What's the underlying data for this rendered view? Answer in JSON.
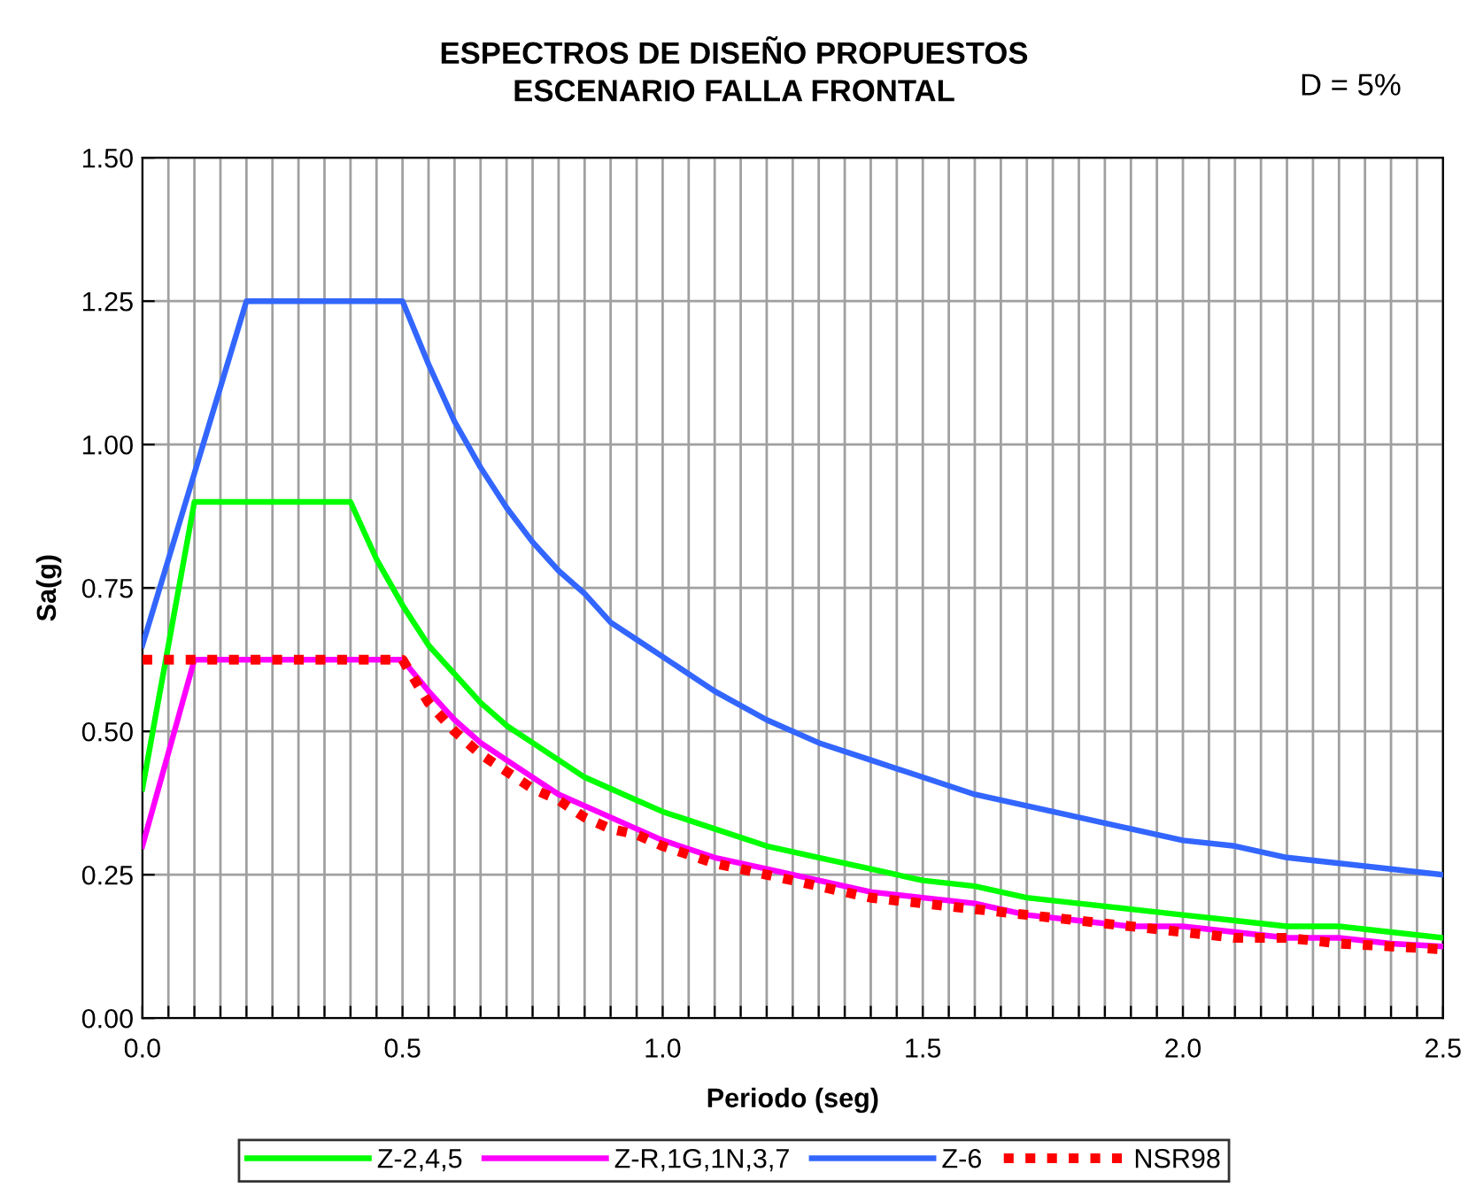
{
  "chart_data": {
    "type": "line",
    "title": "ESPECTROS DE DISEÑO PROPUESTOS\nESCENARIO FALLA FRONTAL",
    "annotations": [
      "D = 5%"
    ],
    "xlabel": "Periodo (seg)",
    "ylabel": "Sa(g)",
    "xlim": [
      0,
      2.5
    ],
    "ylim": [
      0,
      1.5
    ],
    "xticks": [
      {
        "value": 0,
        "label": "0.0"
      },
      {
        "value": 0.05,
        "label": null
      },
      {
        "value": 0.1,
        "label": null
      },
      {
        "value": 0.15,
        "label": null
      },
      {
        "value": 0.2,
        "label": null
      },
      {
        "value": 0.25,
        "label": null
      },
      {
        "value": 0.3,
        "label": null
      },
      {
        "value": 0.35,
        "label": null
      },
      {
        "value": 0.4,
        "label": null
      },
      {
        "value": 0.45,
        "label": null
      },
      {
        "value": 0.5,
        "label": "0.5"
      },
      {
        "value": 0.55,
        "label": null
      },
      {
        "value": 0.6,
        "label": null
      },
      {
        "value": 0.65,
        "label": null
      },
      {
        "value": 0.7,
        "label": null
      },
      {
        "value": 0.75,
        "label": null
      },
      {
        "value": 0.8,
        "label": null
      },
      {
        "value": 0.85,
        "label": null
      },
      {
        "value": 0.9,
        "label": null
      },
      {
        "value": 0.95,
        "label": null
      },
      {
        "value": 1.0,
        "label": "1.0"
      },
      {
        "value": 1.05,
        "label": null
      },
      {
        "value": 1.1,
        "label": null
      },
      {
        "value": 1.15,
        "label": null
      },
      {
        "value": 1.2,
        "label": null
      },
      {
        "value": 1.25,
        "label": null
      },
      {
        "value": 1.3,
        "label": null
      },
      {
        "value": 1.35,
        "label": null
      },
      {
        "value": 1.4,
        "label": null
      },
      {
        "value": 1.45,
        "label": null
      },
      {
        "value": 1.5,
        "label": "1.5"
      },
      {
        "value": 1.55,
        "label": null
      },
      {
        "value": 1.6,
        "label": null
      },
      {
        "value": 1.65,
        "label": null
      },
      {
        "value": 1.7,
        "label": null
      },
      {
        "value": 1.75,
        "label": null
      },
      {
        "value": 1.8,
        "label": null
      },
      {
        "value": 1.85,
        "label": null
      },
      {
        "value": 1.9,
        "label": null
      },
      {
        "value": 1.95,
        "label": null
      },
      {
        "value": 2.0,
        "label": "2.0"
      },
      {
        "value": 2.05,
        "label": null
      },
      {
        "value": 2.1,
        "label": null
      },
      {
        "value": 2.15,
        "label": null
      },
      {
        "value": 2.2,
        "label": null
      },
      {
        "value": 2.25,
        "label": null
      },
      {
        "value": 2.3,
        "label": null
      },
      {
        "value": 2.35,
        "label": null
      },
      {
        "value": 2.4,
        "label": null
      },
      {
        "value": 2.45,
        "label": null
      },
      {
        "value": 2.5,
        "label": "2.5"
      }
    ],
    "yticks": [
      {
        "value": 0,
        "label": "0.00"
      },
      {
        "value": 0.25,
        "label": "0.25"
      },
      {
        "value": 0.5,
        "label": "0.50"
      },
      {
        "value": 0.75,
        "label": "0.75"
      },
      {
        "value": 1.0,
        "label": "1.00"
      },
      {
        "value": 1.25,
        "label": "1.25"
      },
      {
        "value": 1.5,
        "label": "1.50"
      }
    ],
    "grid": true,
    "legend": "bottom",
    "marker": "none",
    "series": [
      {
        "name": "Z-2,4,5",
        "color": "#00ff00",
        "x": [
          0,
          0.1,
          0.4,
          0.45,
          0.5,
          0.55,
          0.6,
          0.65,
          0.7,
          0.75,
          0.8,
          0.85,
          0.9,
          0.95,
          1.0,
          1.1,
          1.2,
          1.3,
          1.4,
          1.5,
          1.6,
          1.7,
          1.8,
          1.9,
          2.0,
          2.1,
          2.2,
          2.3,
          2.4,
          2.5
        ],
        "values": [
          0.4,
          0.9,
          0.9,
          0.8,
          0.72,
          0.65,
          0.6,
          0.55,
          0.51,
          0.48,
          0.45,
          0.42,
          0.4,
          0.38,
          0.36,
          0.33,
          0.3,
          0.28,
          0.26,
          0.24,
          0.23,
          0.21,
          0.2,
          0.19,
          0.18,
          0.17,
          0.16,
          0.16,
          0.15,
          0.14
        ]
      },
      {
        "name": "Z-R,1G,1N,3,7",
        "color": "#ff00ff",
        "x": [
          0,
          0.1,
          0.5,
          0.55,
          0.6,
          0.65,
          0.7,
          0.75,
          0.8,
          0.85,
          0.9,
          0.95,
          1.0,
          1.1,
          1.2,
          1.3,
          1.4,
          1.5,
          1.6,
          1.7,
          1.8,
          1.9,
          2.0,
          2.1,
          2.2,
          2.3,
          2.4,
          2.5
        ],
        "values": [
          0.3,
          0.625,
          0.625,
          0.57,
          0.52,
          0.48,
          0.45,
          0.42,
          0.39,
          0.37,
          0.35,
          0.33,
          0.31,
          0.28,
          0.26,
          0.24,
          0.22,
          0.21,
          0.2,
          0.18,
          0.17,
          0.16,
          0.16,
          0.15,
          0.14,
          0.14,
          0.13,
          0.125
        ]
      },
      {
        "name": "Z-6",
        "color": "#3366ff",
        "x": [
          0,
          0.1,
          0.2,
          0.5,
          0.55,
          0.6,
          0.65,
          0.7,
          0.75,
          0.8,
          0.85,
          0.9,
          0.95,
          1.0,
          1.1,
          1.2,
          1.3,
          1.4,
          1.5,
          1.6,
          1.7,
          1.8,
          1.9,
          2.0,
          2.1,
          2.2,
          2.3,
          2.4,
          2.5
        ],
        "values": [
          0.65,
          0.95,
          1.25,
          1.25,
          1.14,
          1.04,
          0.96,
          0.89,
          0.83,
          0.78,
          0.74,
          0.69,
          0.66,
          0.63,
          0.57,
          0.52,
          0.48,
          0.45,
          0.42,
          0.39,
          0.37,
          0.35,
          0.33,
          0.31,
          0.3,
          0.28,
          0.27,
          0.26,
          0.25
        ]
      },
      {
        "name": "NSR98",
        "color": "#ff0000",
        "line_style": "dotted",
        "x": [
          0,
          0.5,
          0.55,
          0.6,
          0.65,
          0.7,
          0.75,
          0.8,
          0.85,
          0.9,
          0.95,
          1.0,
          1.1,
          1.2,
          1.3,
          1.4,
          1.5,
          1.6,
          1.7,
          1.8,
          1.9,
          2.0,
          2.1,
          2.2,
          2.3,
          2.4,
          2.5
        ],
        "values": [
          0.625,
          0.625,
          0.55,
          0.5,
          0.46,
          0.43,
          0.4,
          0.38,
          0.35,
          0.33,
          0.32,
          0.3,
          0.27,
          0.25,
          0.23,
          0.21,
          0.2,
          0.19,
          0.18,
          0.17,
          0.16,
          0.15,
          0.14,
          0.14,
          0.13,
          0.125,
          0.12
        ]
      }
    ]
  }
}
